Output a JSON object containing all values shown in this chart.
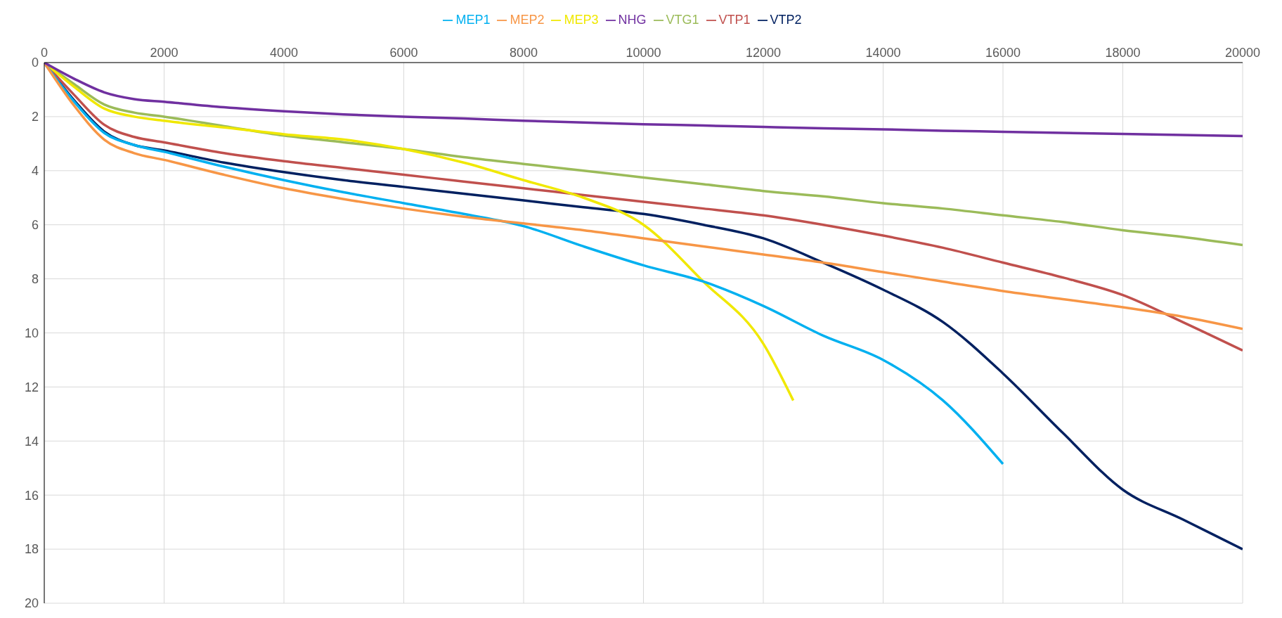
{
  "chart_data": {
    "type": "line",
    "xlim": [
      0,
      20000
    ],
    "xticks": [
      0,
      2000,
      4000,
      6000,
      8000,
      10000,
      12000,
      14000,
      16000,
      18000,
      20000
    ],
    "ylim": [
      20,
      0
    ],
    "yticks": [
      0,
      2,
      4,
      6,
      8,
      10,
      12,
      14,
      16,
      18,
      20
    ],
    "grid": true,
    "legend": "top",
    "marker": "none",
    "line_style": "solid",
    "series": [
      {
        "name": "VTP2",
        "color": "#002060",
        "x": [
          0,
          500,
          1000,
          1500,
          2000,
          3000,
          4000,
          5000,
          6000,
          7000,
          8000,
          9000,
          10000,
          11000,
          12000,
          13000,
          14000,
          15000,
          16000,
          17000,
          18000,
          19000,
          20000
        ],
        "values": [
          0,
          1.4,
          2.55,
          3.05,
          3.25,
          3.7,
          4.05,
          4.35,
          4.6,
          4.85,
          5.1,
          5.35,
          5.6,
          6.0,
          6.5,
          7.4,
          8.4,
          9.6,
          11.5,
          13.7,
          15.8,
          16.9,
          18.0
        ]
      },
      {
        "name": "VTP1",
        "color": "#c0504d",
        "x": [
          0,
          500,
          1000,
          1500,
          2000,
          3000,
          4000,
          5000,
          6000,
          7000,
          8000,
          9000,
          10000,
          11000,
          12000,
          13000,
          14000,
          15000,
          16000,
          17000,
          18000,
          19000,
          20000
        ],
        "values": [
          0,
          1.2,
          2.3,
          2.75,
          2.95,
          3.35,
          3.65,
          3.9,
          4.15,
          4.4,
          4.65,
          4.9,
          5.15,
          5.4,
          5.65,
          6.0,
          6.4,
          6.85,
          7.4,
          7.95,
          8.6,
          9.6,
          10.65
        ]
      },
      {
        "name": "VTG1",
        "color": "#9bbb59",
        "x": [
          0,
          500,
          1000,
          1500,
          2000,
          3000,
          4000,
          5000,
          6000,
          7000,
          8000,
          9000,
          10000,
          11000,
          12000,
          13000,
          14000,
          15000,
          16000,
          17000,
          18000,
          19000,
          20000
        ],
        "values": [
          0,
          0.8,
          1.55,
          1.85,
          2.0,
          2.35,
          2.7,
          2.95,
          3.2,
          3.5,
          3.75,
          4.0,
          4.25,
          4.5,
          4.75,
          4.95,
          5.2,
          5.4,
          5.65,
          5.9,
          6.2,
          6.45,
          6.75
        ]
      },
      {
        "name": "MEP3",
        "color": "#f0e800",
        "x": [
          0,
          500,
          1000,
          1500,
          2000,
          3000,
          4000,
          5000,
          6000,
          7000,
          8000,
          9000,
          10000,
          11000,
          12000,
          12500
        ],
        "values": [
          0,
          0.9,
          1.7,
          2.0,
          2.15,
          2.4,
          2.65,
          2.85,
          3.2,
          3.7,
          4.35,
          5.0,
          6.0,
          8.1,
          10.4,
          12.5
        ]
      },
      {
        "name": "MEP1",
        "color": "#00b0f0",
        "x": [
          0,
          500,
          1000,
          1500,
          2000,
          3000,
          4000,
          5000,
          6000,
          7000,
          8000,
          9000,
          10000,
          11000,
          12000,
          13000,
          14000,
          15000,
          16000
        ],
        "values": [
          0,
          1.45,
          2.6,
          3.05,
          3.3,
          3.85,
          4.35,
          4.8,
          5.2,
          5.6,
          6.05,
          6.8,
          7.5,
          8.1,
          9.0,
          10.1,
          11.0,
          12.5,
          14.85
        ]
      },
      {
        "name": "MEP2",
        "color": "#f79646",
        "x": [
          0,
          500,
          1000,
          1500,
          2000,
          3000,
          4000,
          5000,
          6000,
          7000,
          8000,
          9000,
          10000,
          11000,
          12000,
          13000,
          14000,
          15000,
          16000,
          17000,
          18000,
          19000,
          20000
        ],
        "values": [
          0,
          1.6,
          2.85,
          3.35,
          3.6,
          4.15,
          4.65,
          5.05,
          5.4,
          5.7,
          5.95,
          6.2,
          6.5,
          6.8,
          7.1,
          7.4,
          7.75,
          8.1,
          8.45,
          8.75,
          9.05,
          9.4,
          9.85
        ]
      },
      {
        "name": "NHG",
        "color": "#7030a0",
        "x": [
          0,
          500,
          1000,
          1500,
          2000,
          3000,
          4000,
          5000,
          6000,
          7000,
          8000,
          9000,
          10000,
          11000,
          12000,
          13000,
          14000,
          15000,
          16000,
          17000,
          18000,
          19000,
          20000
        ],
        "values": [
          0,
          0.6,
          1.1,
          1.35,
          1.45,
          1.65,
          1.8,
          1.92,
          2.0,
          2.07,
          2.15,
          2.22,
          2.28,
          2.33,
          2.38,
          2.43,
          2.47,
          2.52,
          2.56,
          2.6,
          2.64,
          2.68,
          2.72
        ]
      }
    ]
  }
}
